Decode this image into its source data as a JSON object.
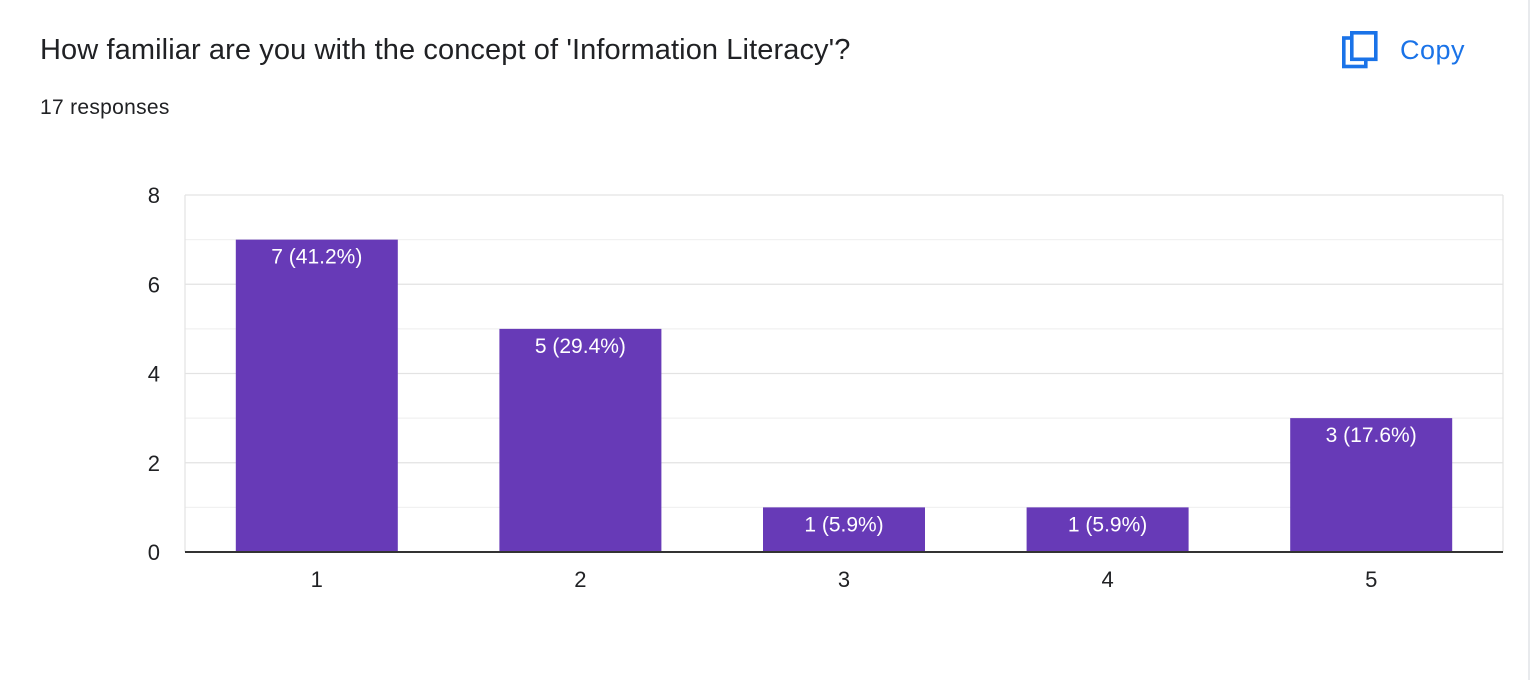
{
  "question": {
    "title": "How familiar are you with the concept of 'Information Literacy'?",
    "responses_label": "17 responses"
  },
  "copy_button": {
    "label": "Copy",
    "icon": "copy-icon"
  },
  "colors": {
    "bar": "#673ab7",
    "accent": "#1a73e8",
    "text": "#202124",
    "axis": "#333333",
    "gridline": "#e3e3e3",
    "minor_gridline": "#f1f1f1",
    "bar_label": "#ffffff"
  },
  "chart_data": {
    "type": "bar",
    "categories": [
      "1",
      "2",
      "3",
      "4",
      "5"
    ],
    "values": [
      7,
      5,
      1,
      1,
      3
    ],
    "data_labels": [
      "7 (41.2%)",
      "5 (29.4%)",
      "1 (5.9%)",
      "1 (5.9%)",
      "3 (17.6%)"
    ],
    "y_ticks": [
      "0",
      "2",
      "4",
      "6",
      "8"
    ],
    "ylim": [
      0,
      8
    ],
    "minor_gridlines": true,
    "grid": true
  }
}
